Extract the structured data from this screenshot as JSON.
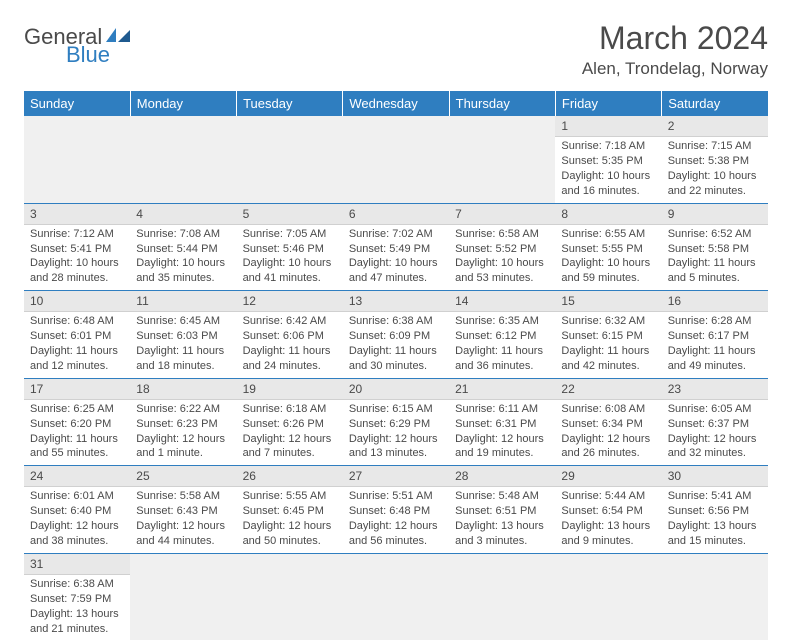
{
  "logo": {
    "general": "General",
    "blue": "Blue"
  },
  "title": "March 2024",
  "location": "Alen, Trondelag, Norway",
  "weekdays": [
    "Sunday",
    "Monday",
    "Tuesday",
    "Wednesday",
    "Thursday",
    "Friday",
    "Saturday"
  ],
  "colors": {
    "header_bg": "#2f7ec0",
    "text": "#4a4a4a"
  },
  "days": {
    "1": {
      "sr": "Sunrise: 7:18 AM",
      "ss": "Sunset: 5:35 PM",
      "dl": "Daylight: 10 hours and 16 minutes."
    },
    "2": {
      "sr": "Sunrise: 7:15 AM",
      "ss": "Sunset: 5:38 PM",
      "dl": "Daylight: 10 hours and 22 minutes."
    },
    "3": {
      "sr": "Sunrise: 7:12 AM",
      "ss": "Sunset: 5:41 PM",
      "dl": "Daylight: 10 hours and 28 minutes."
    },
    "4": {
      "sr": "Sunrise: 7:08 AM",
      "ss": "Sunset: 5:44 PM",
      "dl": "Daylight: 10 hours and 35 minutes."
    },
    "5": {
      "sr": "Sunrise: 7:05 AM",
      "ss": "Sunset: 5:46 PM",
      "dl": "Daylight: 10 hours and 41 minutes."
    },
    "6": {
      "sr": "Sunrise: 7:02 AM",
      "ss": "Sunset: 5:49 PM",
      "dl": "Daylight: 10 hours and 47 minutes."
    },
    "7": {
      "sr": "Sunrise: 6:58 AM",
      "ss": "Sunset: 5:52 PM",
      "dl": "Daylight: 10 hours and 53 minutes."
    },
    "8": {
      "sr": "Sunrise: 6:55 AM",
      "ss": "Sunset: 5:55 PM",
      "dl": "Daylight: 10 hours and 59 minutes."
    },
    "9": {
      "sr": "Sunrise: 6:52 AM",
      "ss": "Sunset: 5:58 PM",
      "dl": "Daylight: 11 hours and 5 minutes."
    },
    "10": {
      "sr": "Sunrise: 6:48 AM",
      "ss": "Sunset: 6:01 PM",
      "dl": "Daylight: 11 hours and 12 minutes."
    },
    "11": {
      "sr": "Sunrise: 6:45 AM",
      "ss": "Sunset: 6:03 PM",
      "dl": "Daylight: 11 hours and 18 minutes."
    },
    "12": {
      "sr": "Sunrise: 6:42 AM",
      "ss": "Sunset: 6:06 PM",
      "dl": "Daylight: 11 hours and 24 minutes."
    },
    "13": {
      "sr": "Sunrise: 6:38 AM",
      "ss": "Sunset: 6:09 PM",
      "dl": "Daylight: 11 hours and 30 minutes."
    },
    "14": {
      "sr": "Sunrise: 6:35 AM",
      "ss": "Sunset: 6:12 PM",
      "dl": "Daylight: 11 hours and 36 minutes."
    },
    "15": {
      "sr": "Sunrise: 6:32 AM",
      "ss": "Sunset: 6:15 PM",
      "dl": "Daylight: 11 hours and 42 minutes."
    },
    "16": {
      "sr": "Sunrise: 6:28 AM",
      "ss": "Sunset: 6:17 PM",
      "dl": "Daylight: 11 hours and 49 minutes."
    },
    "17": {
      "sr": "Sunrise: 6:25 AM",
      "ss": "Sunset: 6:20 PM",
      "dl": "Daylight: 11 hours and 55 minutes."
    },
    "18": {
      "sr": "Sunrise: 6:22 AM",
      "ss": "Sunset: 6:23 PM",
      "dl": "Daylight: 12 hours and 1 minute."
    },
    "19": {
      "sr": "Sunrise: 6:18 AM",
      "ss": "Sunset: 6:26 PM",
      "dl": "Daylight: 12 hours and 7 minutes."
    },
    "20": {
      "sr": "Sunrise: 6:15 AM",
      "ss": "Sunset: 6:29 PM",
      "dl": "Daylight: 12 hours and 13 minutes."
    },
    "21": {
      "sr": "Sunrise: 6:11 AM",
      "ss": "Sunset: 6:31 PM",
      "dl": "Daylight: 12 hours and 19 minutes."
    },
    "22": {
      "sr": "Sunrise: 6:08 AM",
      "ss": "Sunset: 6:34 PM",
      "dl": "Daylight: 12 hours and 26 minutes."
    },
    "23": {
      "sr": "Sunrise: 6:05 AM",
      "ss": "Sunset: 6:37 PM",
      "dl": "Daylight: 12 hours and 32 minutes."
    },
    "24": {
      "sr": "Sunrise: 6:01 AM",
      "ss": "Sunset: 6:40 PM",
      "dl": "Daylight: 12 hours and 38 minutes."
    },
    "25": {
      "sr": "Sunrise: 5:58 AM",
      "ss": "Sunset: 6:43 PM",
      "dl": "Daylight: 12 hours and 44 minutes."
    },
    "26": {
      "sr": "Sunrise: 5:55 AM",
      "ss": "Sunset: 6:45 PM",
      "dl": "Daylight: 12 hours and 50 minutes."
    },
    "27": {
      "sr": "Sunrise: 5:51 AM",
      "ss": "Sunset: 6:48 PM",
      "dl": "Daylight: 12 hours and 56 minutes."
    },
    "28": {
      "sr": "Sunrise: 5:48 AM",
      "ss": "Sunset: 6:51 PM",
      "dl": "Daylight: 13 hours and 3 minutes."
    },
    "29": {
      "sr": "Sunrise: 5:44 AM",
      "ss": "Sunset: 6:54 PM",
      "dl": "Daylight: 13 hours and 9 minutes."
    },
    "30": {
      "sr": "Sunrise: 5:41 AM",
      "ss": "Sunset: 6:56 PM",
      "dl": "Daylight: 13 hours and 15 minutes."
    },
    "31": {
      "sr": "Sunrise: 6:38 AM",
      "ss": "Sunset: 7:59 PM",
      "dl": "Daylight: 13 hours and 21 minutes."
    }
  },
  "grid": [
    [
      null,
      null,
      null,
      null,
      null,
      "1",
      "2"
    ],
    [
      "3",
      "4",
      "5",
      "6",
      "7",
      "8",
      "9"
    ],
    [
      "10",
      "11",
      "12",
      "13",
      "14",
      "15",
      "16"
    ],
    [
      "17",
      "18",
      "19",
      "20",
      "21",
      "22",
      "23"
    ],
    [
      "24",
      "25",
      "26",
      "27",
      "28",
      "29",
      "30"
    ],
    [
      "31",
      null,
      null,
      null,
      null,
      null,
      null
    ]
  ]
}
